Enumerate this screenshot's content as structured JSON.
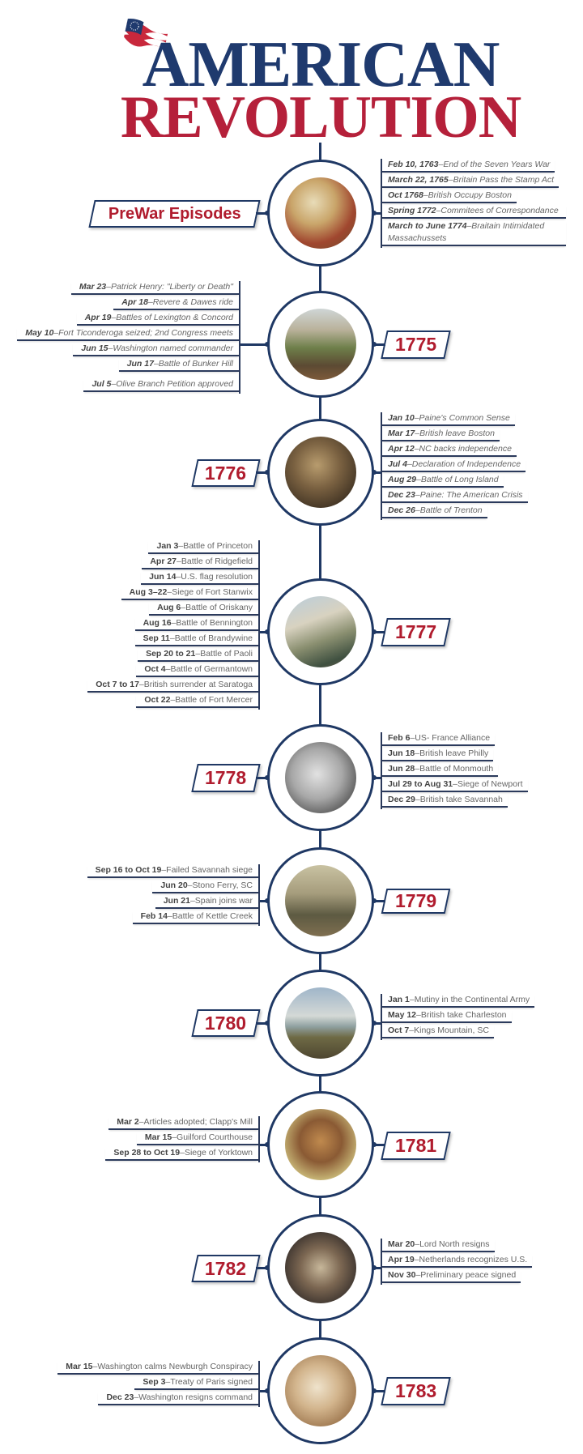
{
  "header": {
    "title_line1": "AMERICAN",
    "title_line2": "REVOLUTION",
    "logo_icon": "colonial-flag-icon"
  },
  "colors": {
    "navy": "#1f3864",
    "title_blue": "#1f3a6e",
    "title_red": "#b5203a",
    "year_red": "#b01c2e"
  },
  "timeline": {
    "separator": "–",
    "sections": [
      {
        "label": "PreWar Episodes",
        "events": [
          {
            "date": "Feb 10, 1763",
            "desc": "End of the Seven Years War"
          },
          {
            "date": "March 22, 1765",
            "desc": "Britain Pass the Stamp Act"
          },
          {
            "date": "Oct 1768",
            "desc": "British Occupy Boston"
          },
          {
            "date": "Spring 1772",
            "desc": "Commitees of Correspondance"
          },
          {
            "date": "March to June 1774",
            "desc": "Braitain Intimidated Massachussets"
          }
        ]
      },
      {
        "label": "1775",
        "events": [
          {
            "date": "Mar 23",
            "desc": "Patrick Henry: \"Liberty or Death\""
          },
          {
            "date": "Apr 18",
            "desc": "Revere & Dawes ride"
          },
          {
            "date": "Apr 19",
            "desc": "Battles of Lexington & Concord"
          },
          {
            "date": "May 10",
            "desc": "Fort Ticonderoga seized; 2nd Congress meets"
          },
          {
            "date": "Jun 15",
            "desc": "Washington named commander"
          },
          {
            "date": "Jun 17",
            "desc": "Battle of Bunker Hill"
          },
          {
            "date": "Jul 5",
            "desc": "Olive Branch Petition approved"
          }
        ]
      },
      {
        "label": "1776",
        "events": [
          {
            "date": "Jan 10",
            "desc": "Paine's Common Sense"
          },
          {
            "date": "Mar 17",
            "desc": "British leave Boston"
          },
          {
            "date": "Apr 12",
            "desc": "NC backs independence"
          },
          {
            "date": "Jul 4",
            "desc": "Declaration of Independence"
          },
          {
            "date": "Aug 29",
            "desc": "Battle of Long Island"
          },
          {
            "date": "Dec 23",
            "desc": "Paine: The American Crisis"
          },
          {
            "date": "Dec 26",
            "desc": "Battle of Trenton"
          }
        ]
      },
      {
        "label": "1777",
        "events": [
          {
            "date": "Jan 3",
            "desc": "Battle of Princeton"
          },
          {
            "date": "Apr 27",
            "desc": "Battle of Ridgefield"
          },
          {
            "date": "Jun 14",
            "desc": "U.S. flag resolution"
          },
          {
            "date": "Aug 3–22",
            "desc": "Siege of Fort Stanwix"
          },
          {
            "date": "Aug 6",
            "desc": "Battle of Oriskany"
          },
          {
            "date": "Aug 16",
            "desc": "Battle of Bennington"
          },
          {
            "date": "Sep 11",
            "desc": "Battle of Brandywine"
          },
          {
            "date": "Sep 20 to 21",
            "desc": "Battle of Paoli"
          },
          {
            "date": "Oct 4",
            "desc": "Battle of Germantown"
          },
          {
            "date": "Oct 7 to 17",
            "desc": "British surrender at Saratoga"
          },
          {
            "date": "Oct 22",
            "desc": "Battle of Fort Mercer"
          }
        ]
      },
      {
        "label": "1778",
        "events": [
          {
            "date": "Feb 6",
            "desc": "US- France Alliance"
          },
          {
            "date": "Jun 18",
            "desc": "British leave Philly"
          },
          {
            "date": "Jun 28",
            "desc": "Battle of Monmouth"
          },
          {
            "date": "Jul 29 to Aug 31",
            "desc": "Siege of Newport"
          },
          {
            "date": "Dec 29",
            "desc": "British take Savannah"
          }
        ]
      },
      {
        "label": "1779",
        "events": [
          {
            "date": "Sep 16 to Oct 19",
            "desc": "Failed Savannah siege"
          },
          {
            "date": "Jun 20",
            "desc": "Stono Ferry, SC"
          },
          {
            "date": "Jun 21",
            "desc": "Spain joins war"
          },
          {
            "date": "Feb 14",
            "desc": "Battle of Kettle Creek"
          }
        ]
      },
      {
        "label": "1780",
        "events": [
          {
            "date": "Jan 1",
            "desc": "Mutiny in the Continental Army"
          },
          {
            "date": "May 12",
            "desc": "British take Charleston"
          },
          {
            "date": "Oct 7",
            "desc": "Kings Mountain, SC"
          }
        ]
      },
      {
        "label": "1781",
        "events": [
          {
            "date": "Mar 2",
            "desc": "Articles adopted; Clapp's Mill"
          },
          {
            "date": "Mar 15",
            "desc": "Guilford Courthouse"
          },
          {
            "date": "Sep 28 to Oct 19",
            "desc": "Siege of Yorktown"
          }
        ]
      },
      {
        "label": "1782",
        "events": [
          {
            "date": "Mar 20",
            "desc": "Lord North resigns"
          },
          {
            "date": "Apr 19",
            "desc": "Netherlands recognizes U.S."
          },
          {
            "date": "Nov 30",
            "desc": "Preliminary peace signed"
          }
        ]
      },
      {
        "label": "1783",
        "events": [
          {
            "date": "Mar 15",
            "desc": "Washington calms Newburgh Conspiracy"
          },
          {
            "date": "Sep 3",
            "desc": "Treaty of Paris signed"
          },
          {
            "date": "Dec 23",
            "desc": "Washington resigns command"
          }
        ]
      }
    ]
  }
}
